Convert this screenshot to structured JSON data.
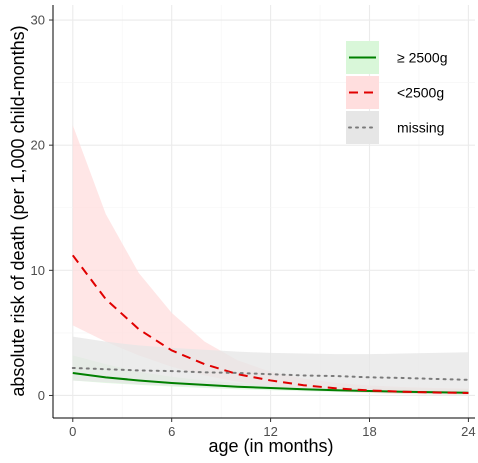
{
  "chart_data": {
    "type": "line",
    "title": "",
    "xlabel": "age (in months)",
    "ylabel": "absolute risk of death (per 1,000 child-months)",
    "xlim": [
      -1.2,
      24.4
    ],
    "ylim": [
      -1.8,
      31.2
    ],
    "x_ticks": [
      0,
      6,
      12,
      18,
      24
    ],
    "y_ticks": [
      0,
      10,
      20,
      30
    ],
    "x_tick_labels": [
      "0",
      "6",
      "12",
      "18",
      "24"
    ],
    "y_tick_labels": [
      "0",
      "10",
      "20",
      "30"
    ],
    "grid": true,
    "legend_position": "top-right",
    "series": [
      {
        "name": "≥ 2500g",
        "color": "#008000",
        "band_color": "#d9f7d9",
        "line_style": "solid",
        "x": [
          0,
          2,
          4,
          6,
          8,
          10,
          12,
          14,
          16,
          18,
          20,
          22,
          24
        ],
        "y": [
          1.8,
          1.45,
          1.2,
          1.0,
          0.85,
          0.7,
          0.6,
          0.5,
          0.42,
          0.36,
          0.3,
          0.26,
          0.22
        ],
        "lower": [
          1.2,
          1.0,
          0.85,
          0.72,
          0.6,
          0.5,
          0.42,
          0.34,
          0.28,
          0.22,
          0.17,
          0.13,
          0.1
        ],
        "upper": [
          3.2,
          2.5,
          1.9,
          1.5,
          1.2,
          1.0,
          0.85,
          0.75,
          0.68,
          0.62,
          0.58,
          0.55,
          0.52
        ]
      },
      {
        "name": "<2500g",
        "color": "#e00000",
        "band_color": "#ffdede",
        "line_style": "dashed",
        "x": [
          0,
          2,
          4,
          6,
          8,
          10,
          12,
          14,
          16,
          18,
          20,
          22,
          24
        ],
        "y": [
          11.2,
          7.7,
          5.3,
          3.6,
          2.5,
          1.7,
          1.2,
          0.82,
          0.57,
          0.4,
          0.3,
          0.24,
          0.2
        ],
        "lower": [
          5.6,
          4.3,
          3.2,
          2.3,
          1.6,
          1.1,
          0.75,
          0.5,
          0.32,
          0.2,
          0.12,
          0.08,
          0.05
        ],
        "upper": [
          21.6,
          14.5,
          9.8,
          6.6,
          4.3,
          2.8,
          1.9,
          1.35,
          1.0,
          0.8,
          0.68,
          0.6,
          0.55
        ]
      },
      {
        "name": "missing",
        "color": "#7a7a7a",
        "band_color": "#e6e6e6",
        "line_style": "dotted",
        "x": [
          0,
          2,
          4,
          6,
          8,
          10,
          12,
          14,
          16,
          18,
          20,
          22,
          24
        ],
        "y": [
          2.2,
          2.1,
          2.0,
          1.95,
          1.85,
          1.8,
          1.7,
          1.6,
          1.55,
          1.45,
          1.4,
          1.32,
          1.25
        ],
        "lower": [
          1.2,
          1.05,
          0.9,
          0.8,
          0.7,
          0.6,
          0.5,
          0.4,
          0.32,
          0.25,
          0.18,
          0.12,
          0.08
        ],
        "upper": [
          4.7,
          4.3,
          4.0,
          3.8,
          3.65,
          3.5,
          3.4,
          3.35,
          3.3,
          3.3,
          3.35,
          3.4,
          3.45
        ]
      }
    ]
  }
}
